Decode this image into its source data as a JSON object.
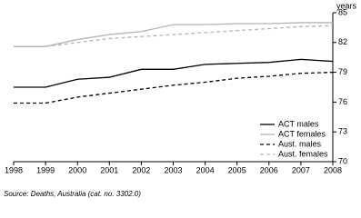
{
  "chart_data": {
    "type": "line",
    "y_label": "years",
    "source": "Source: Deaths, Australia (cat. no. 3302.0)",
    "x": [
      1998,
      1999,
      2000,
      2001,
      2002,
      2003,
      2004,
      2005,
      2006,
      2007,
      2008
    ],
    "xlim": [
      1998,
      2008
    ],
    "xticks": [
      1998,
      1999,
      2000,
      2001,
      2002,
      2003,
      2004,
      2005,
      2006,
      2007,
      2008
    ],
    "ylim": [
      70,
      85
    ],
    "yticks": [
      70,
      73,
      76,
      79,
      82,
      85
    ],
    "legend": "lower right",
    "series": [
      {
        "name": "ACT males",
        "color": "#000000",
        "dash": false,
        "values": [
          77.5,
          77.5,
          78.3,
          78.5,
          79.3,
          79.3,
          79.8,
          79.9,
          80.0,
          80.3,
          80.1
        ]
      },
      {
        "name": "ACT females",
        "color": "#b4b4b4",
        "dash": false,
        "values": [
          81.6,
          81.6,
          82.3,
          82.8,
          83.1,
          83.8,
          83.8,
          83.9,
          83.9,
          84.0,
          84.0
        ]
      },
      {
        "name": "Aust. males",
        "color": "#000000",
        "dash": true,
        "values": [
          75.9,
          75.9,
          76.5,
          76.9,
          77.3,
          77.7,
          78.0,
          78.4,
          78.6,
          78.9,
          79.0
        ]
      },
      {
        "name": "Aust. females",
        "color": "#b4b4b4",
        "dash": true,
        "values": [
          81.6,
          81.6,
          82.0,
          82.4,
          82.6,
          82.8,
          83.0,
          83.2,
          83.4,
          83.6,
          83.7
        ]
      }
    ]
  }
}
